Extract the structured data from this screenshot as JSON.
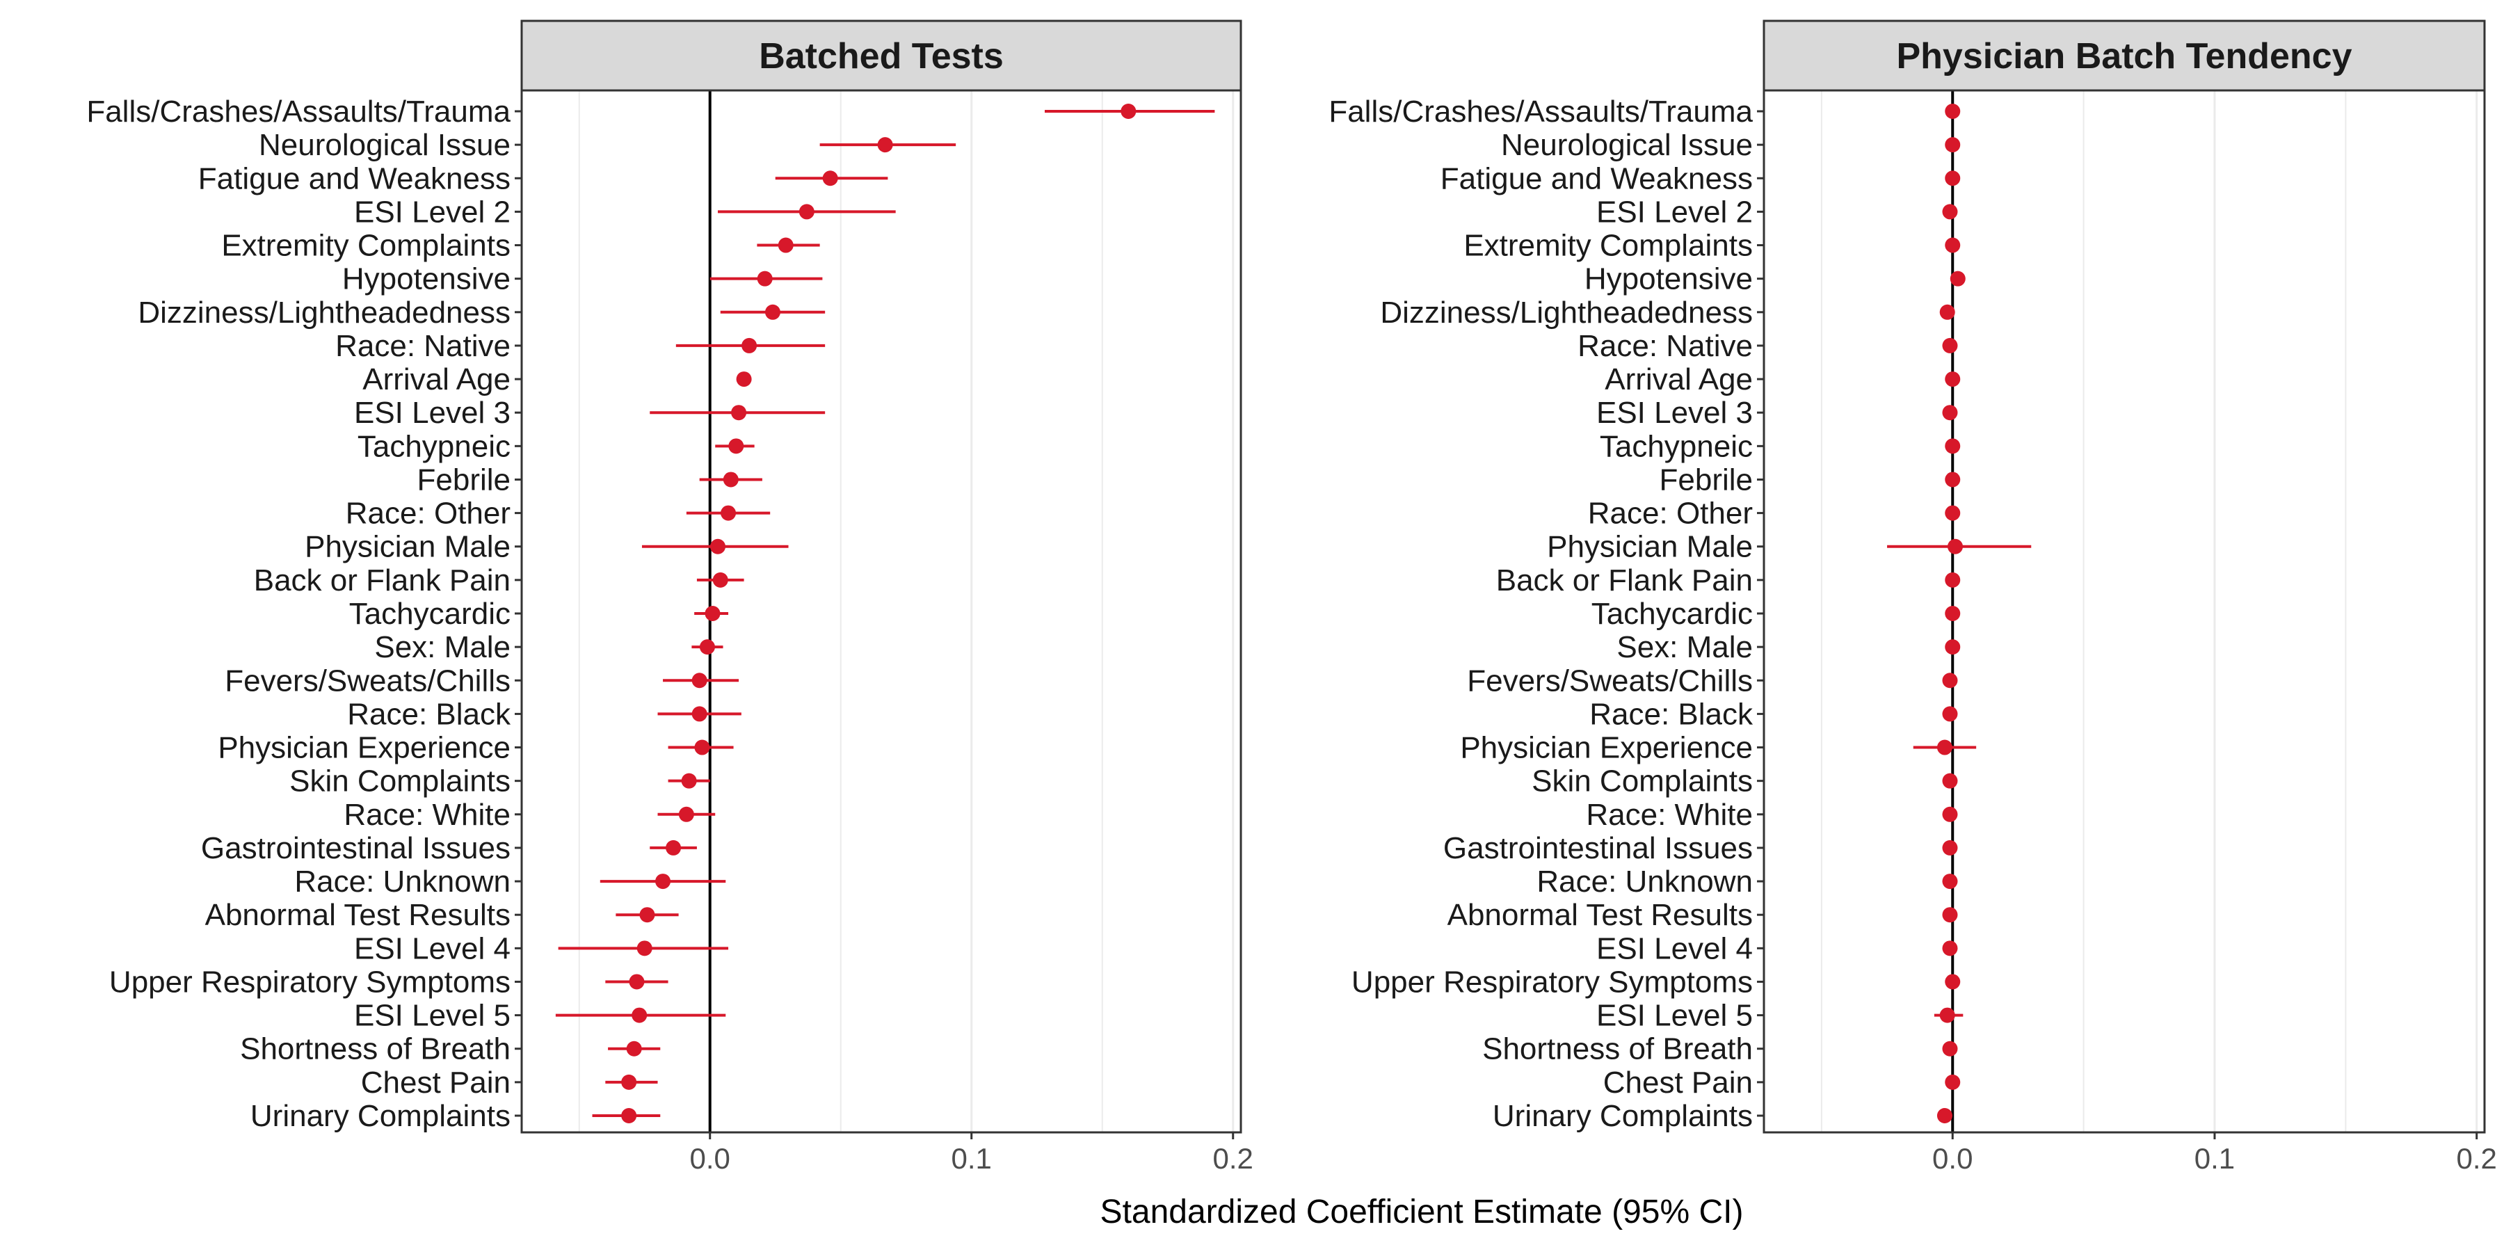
{
  "chart_data": {
    "type": "forest",
    "categories": [
      "Falls/Crashes/Assaults/Trauma",
      "Neurological Issue",
      "Fatigue and Weakness",
      "ESI Level 2",
      "Extremity Complaints",
      "Hypotensive",
      "Dizziness/Lightheadedness",
      "Race: Native",
      "Arrival Age",
      "ESI Level 3",
      "Tachypneic",
      "Febrile",
      "Race: Other",
      "Physician Male",
      "Back or Flank Pain",
      "Tachycardic",
      "Sex: Male",
      "Fevers/Sweats/Chills",
      "Race: Black",
      "Physician Experience",
      "Skin Complaints",
      "Race: White",
      "Gastrointestinal Issues",
      "Race: Unknown",
      "Abnormal Test Results",
      "ESI Level 4",
      "Upper Respiratory Symptoms",
      "ESI Level 5",
      "Shortness of Breath",
      "Chest Pain",
      "Urinary Complaints"
    ],
    "xlabel": "Standardized Coefficient Estimate (95% CI)",
    "xlim": [
      -0.072,
      0.203
    ],
    "xticks": [
      0.0,
      0.1,
      0.2
    ],
    "xtick_labels": [
      "0.0",
      "0.1",
      "0.2"
    ],
    "grid": true,
    "zero_line": 0.0,
    "colors": {
      "point": "#d7182a",
      "strip_bg": "#d9d9d9",
      "panel_border": "#333333",
      "grid": "#ebebeb",
      "zero_line": "#000000"
    },
    "panels": [
      {
        "title": "Batched Tests",
        "estimates": [
          0.16,
          0.067,
          0.046,
          0.037,
          0.029,
          0.021,
          0.024,
          0.015,
          0.013,
          0.011,
          0.01,
          0.008,
          0.007,
          0.003,
          0.004,
          0.001,
          -0.001,
          -0.004,
          -0.004,
          -0.003,
          -0.008,
          -0.009,
          -0.014,
          -0.018,
          -0.024,
          -0.025,
          -0.028,
          -0.027,
          -0.029,
          -0.031,
          -0.031
        ],
        "lower": [
          0.128,
          0.042,
          0.025,
          0.003,
          0.018,
          0.0,
          0.004,
          -0.013,
          0.011,
          -0.023,
          0.002,
          -0.004,
          -0.009,
          -0.026,
          -0.005,
          -0.006,
          -0.007,
          -0.018,
          -0.02,
          -0.016,
          -0.016,
          -0.02,
          -0.023,
          -0.042,
          -0.036,
          -0.058,
          -0.04,
          -0.059,
          -0.039,
          -0.04,
          -0.045
        ],
        "upper": [
          0.193,
          0.094,
          0.068,
          0.071,
          0.042,
          0.043,
          0.044,
          0.044,
          0.015,
          0.044,
          0.017,
          0.02,
          0.023,
          0.03,
          0.013,
          0.007,
          0.005,
          0.011,
          0.012,
          0.009,
          0.0,
          0.002,
          -0.005,
          0.006,
          -0.012,
          0.007,
          -0.016,
          0.006,
          -0.019,
          -0.02,
          -0.019
        ]
      },
      {
        "title": "Physician Batch Tendency",
        "estimates": [
          0.0,
          0.0,
          0.0,
          -0.001,
          0.0,
          0.002,
          -0.002,
          -0.001,
          0.0,
          -0.001,
          0.0,
          0.0,
          0.0,
          0.001,
          0.0,
          0.0,
          0.0,
          -0.001,
          -0.001,
          -0.003,
          -0.001,
          -0.001,
          -0.001,
          -0.001,
          -0.001,
          -0.001,
          0.0,
          -0.002,
          -0.001,
          0.0,
          -0.003
        ],
        "lower": [
          -0.001,
          -0.001,
          -0.001,
          -0.002,
          -0.001,
          0.001,
          -0.003,
          -0.002,
          -0.001,
          -0.002,
          -0.001,
          -0.001,
          -0.001,
          -0.025,
          -0.001,
          -0.001,
          -0.001,
          -0.002,
          -0.002,
          -0.015,
          -0.002,
          -0.002,
          -0.002,
          -0.002,
          -0.002,
          -0.002,
          -0.001,
          -0.007,
          -0.002,
          -0.001,
          -0.004
        ],
        "upper": [
          0.001,
          0.001,
          0.001,
          0.0,
          0.001,
          0.003,
          -0.001,
          0.0,
          0.001,
          0.0,
          0.001,
          0.001,
          0.001,
          0.03,
          0.001,
          0.001,
          0.001,
          0.0,
          0.0,
          0.009,
          0.0,
          0.0,
          0.0,
          0.0,
          0.0,
          0.0,
          0.001,
          0.004,
          0.0,
          0.001,
          -0.002
        ]
      }
    ]
  }
}
